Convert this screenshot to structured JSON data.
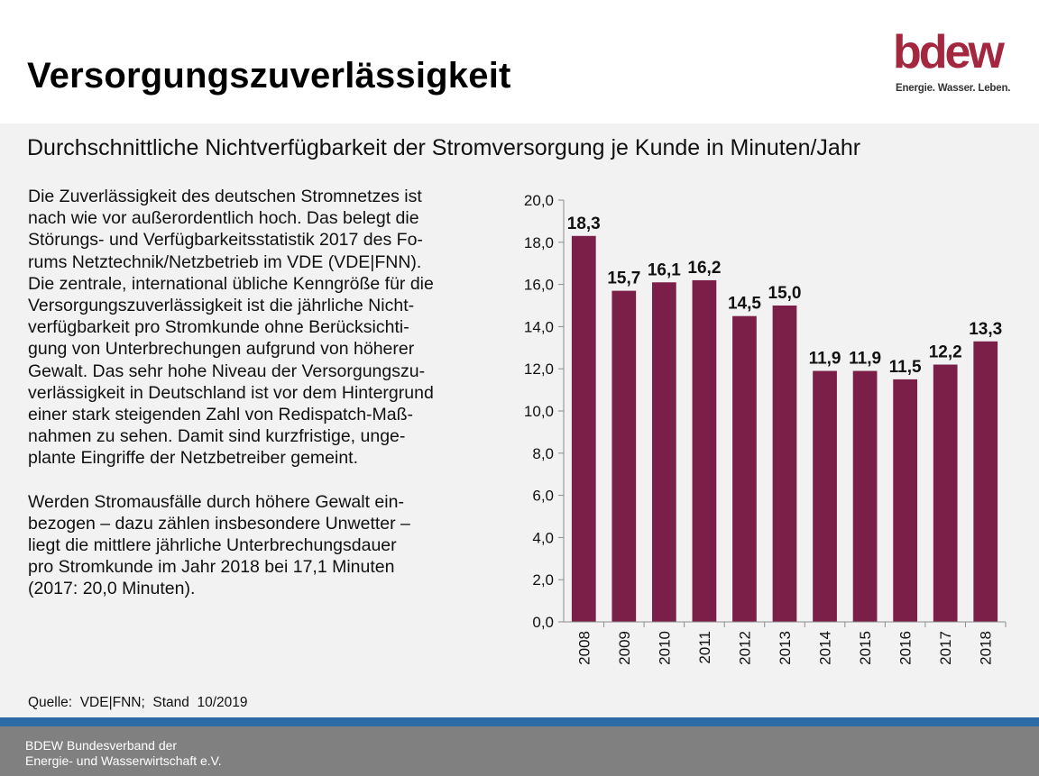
{
  "header": {
    "title": "Versorgungszuverlässigkeit",
    "logo_text": "bdew",
    "logo_tagline": "Energie. Wasser. Leben."
  },
  "subtitle": "Durchschnittliche Nichtverfügbarkeit der Stromversorgung je Kunde in Minuten/Jahr",
  "body": {
    "paragraph1_lines": [
      "Die Zuverlässigkeit des deutschen Stromnetzes ist",
      "nach wie vor außerordentlich hoch. Das belegt die",
      "Störungs- und Verfügbarkeitsstatistik 2017 des Fo-",
      "rums Netztechnik/Netzbetrieb im VDE (VDE|FNN).",
      "Die zentrale, international übliche Kenngröße für die",
      "Versorgungszuverlässigkeit ist die jährliche Nicht-",
      "verfügbarkeit pro Stromkunde ohne Berücksichti-",
      "gung von Unterbrechungen aufgrund von höherer",
      "Gewalt. Das sehr hohe Niveau der Versorgungszu-",
      "verlässigkeit in Deutschland ist vor dem Hintergrund",
      "einer stark steigenden Zahl von Redispatch-Maß-",
      "nahmen zu sehen. Damit sind kurzfristige, unge-",
      "plante Eingriffe der Netzbetreiber gemeint."
    ],
    "paragraph2_lines": [
      "Werden Stromausfälle durch höhere Gewalt ein-",
      "bezogen – dazu zählen insbesondere Unwetter –",
      "liegt die mittlere jährliche Unterbrechungsdauer",
      "pro Stromkunde im Jahr 2018 bei 17,1 Minuten",
      "(2017: 20,0 Minuten)."
    ]
  },
  "source": "Quelle:  VDE|FNN;  Stand  10/2019",
  "footer": {
    "line1": "BDEW Bundesverband der",
    "line2": "Energie- und Wasserwirtschaft e.V."
  },
  "colors": {
    "bar": "#7b1e48",
    "brand": "#a3273f",
    "stripe": "#2c6ba6"
  },
  "chart_data": {
    "type": "bar",
    "title": "",
    "xlabel": "",
    "ylabel": "",
    "categories": [
      "2008",
      "2009",
      "2010",
      "2011",
      "2012",
      "2013",
      "2014",
      "2015",
      "2016",
      "2017",
      "2018"
    ],
    "values": [
      18.3,
      15.7,
      16.1,
      16.2,
      14.5,
      15.0,
      11.9,
      11.9,
      11.5,
      12.2,
      13.3
    ],
    "value_labels": [
      "18,3",
      "15,7",
      "16,1",
      "16,2",
      "14,5",
      "15,0",
      "11,9",
      "11,9",
      "11,5",
      "12,2",
      "13,3"
    ],
    "ylim": [
      0,
      20
    ],
    "yticks": [
      0,
      2,
      4,
      6,
      8,
      10,
      12,
      14,
      16,
      18,
      20
    ],
    "ytick_labels": [
      "0,0",
      "2,0",
      "4,0",
      "6,0",
      "8,0",
      "10,0",
      "12,0",
      "14,0",
      "16,0",
      "18,0",
      "20,0"
    ],
    "grid": false,
    "legend": "none"
  }
}
